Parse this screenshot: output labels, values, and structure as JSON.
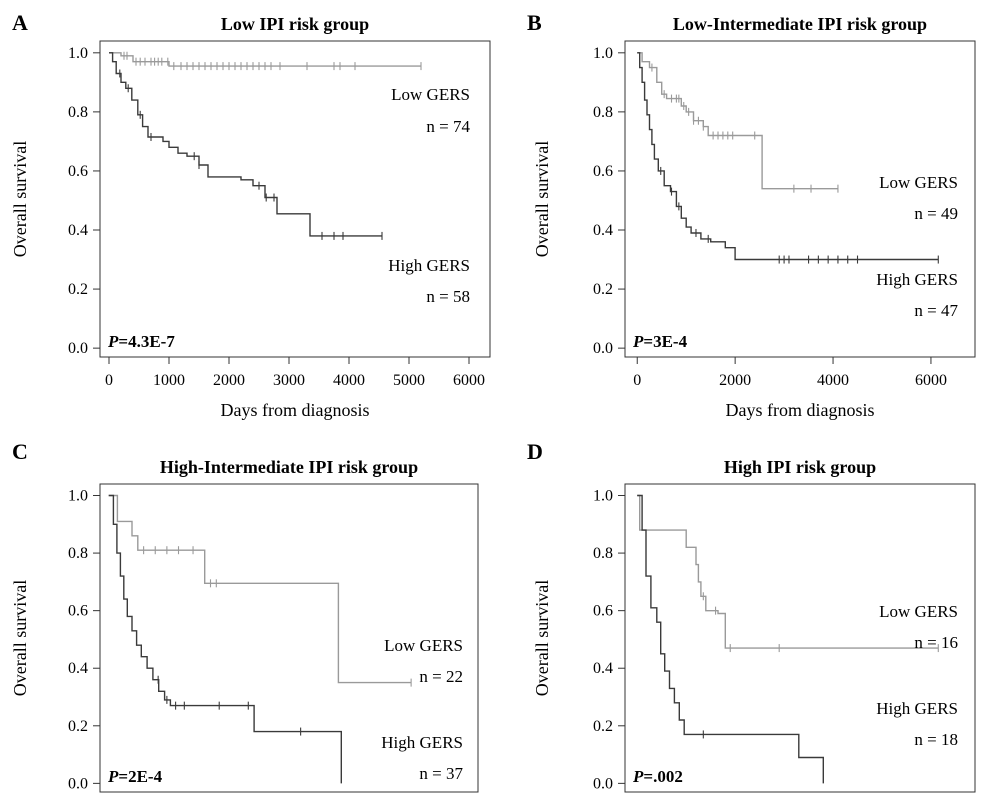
{
  "chart_data": [
    {
      "panel": "A",
      "type": "line",
      "title": "Low IPI risk group",
      "xlabel": "Days from diagnosis",
      "ylabel": "Overall survival",
      "p_value": {
        "prefix": "P",
        "value": "=4.3E-7"
      },
      "xlim": [
        -150,
        6350
      ],
      "ylim": [
        -0.03,
        1.04
      ],
      "xticks": [
        0,
        1000,
        2000,
        3000,
        4000,
        5000,
        6000
      ],
      "yticks": [
        0.0,
        0.2,
        0.4,
        0.6,
        0.8,
        1.0
      ],
      "ytick_labels": [
        "0.0",
        "0.2",
        "0.4",
        "0.6",
        "0.8",
        "1.0"
      ],
      "show_xaxis": true,
      "series": [
        {
          "name": "Low GERS",
          "n_label": "n = 74",
          "color": "#9a9a9a",
          "steps": [
            [
              0,
              1.0
            ],
            [
              200,
              0.99
            ],
            [
              400,
              0.97
            ],
            [
              1000,
              0.955
            ],
            [
              5200,
              0.955
            ]
          ],
          "censors": [
            250,
            300,
            450,
            520,
            600,
            700,
            760,
            820,
            880,
            980,
            1080,
            1200,
            1300,
            1400,
            1500,
            1600,
            1700,
            1800,
            1900,
            2000,
            2100,
            2200,
            2300,
            2400,
            2500,
            2600,
            2700,
            2850,
            3300,
            3750,
            3850,
            4100,
            5200
          ]
        },
        {
          "name": "High GERS",
          "n_label": "n = 58",
          "color": "#3a3a3a",
          "steps": [
            [
              0,
              1.0
            ],
            [
              60,
              0.97
            ],
            [
              120,
              0.93
            ],
            [
              200,
              0.9
            ],
            [
              280,
              0.88
            ],
            [
              380,
              0.84
            ],
            [
              480,
              0.79
            ],
            [
              560,
              0.75
            ],
            [
              650,
              0.715
            ],
            [
              900,
              0.7
            ],
            [
              1000,
              0.68
            ],
            [
              1150,
              0.66
            ],
            [
              1300,
              0.65
            ],
            [
              1500,
              0.62
            ],
            [
              1650,
              0.58
            ],
            [
              2200,
              0.57
            ],
            [
              2400,
              0.55
            ],
            [
              2600,
              0.51
            ],
            [
              2800,
              0.455
            ],
            [
              3300,
              0.455
            ],
            [
              3350,
              0.38
            ],
            [
              4550,
              0.38
            ]
          ],
          "censors": [
            180,
            320,
            520,
            700,
            1420,
            1500,
            2500,
            2620,
            2750,
            3550,
            3750,
            3900,
            4550
          ]
        }
      ]
    },
    {
      "panel": "B",
      "type": "line",
      "title": "Low-Intermediate IPI risk group",
      "xlabel": "Days from diagnosis",
      "ylabel": "Overall survival",
      "p_value": {
        "prefix": "P",
        "value": "=3E-4"
      },
      "xlim": [
        -250,
        6900
      ],
      "ylim": [
        -0.03,
        1.04
      ],
      "xticks": [
        0,
        2000,
        4000,
        6000
      ],
      "yticks": [
        0.0,
        0.2,
        0.4,
        0.6,
        0.8,
        1.0
      ],
      "ytick_labels": [
        "0.0",
        "0.2",
        "0.4",
        "0.6",
        "0.8",
        "1.0"
      ],
      "show_xaxis": true,
      "series": [
        {
          "name": "Low GERS",
          "n_label": "n = 49",
          "color": "#9a9a9a",
          "steps": [
            [
              0,
              1.0
            ],
            [
              100,
              0.97
            ],
            [
              250,
              0.95
            ],
            [
              400,
              0.9
            ],
            [
              500,
              0.86
            ],
            [
              600,
              0.845
            ],
            [
              900,
              0.82
            ],
            [
              1000,
              0.8
            ],
            [
              1150,
              0.77
            ],
            [
              1350,
              0.75
            ],
            [
              1450,
              0.72
            ],
            [
              2500,
              0.72
            ],
            [
              2550,
              0.54
            ],
            [
              4100,
              0.54
            ]
          ],
          "censors": [
            300,
            550,
            700,
            800,
            850,
            950,
            1050,
            1150,
            1250,
            1350,
            1550,
            1650,
            1750,
            1850,
            1950,
            2400,
            3200,
            3550,
            4100
          ]
        },
        {
          "name": "High GERS",
          "n_label": "n = 47",
          "color": "#3a3a3a",
          "steps": [
            [
              0,
              1.0
            ],
            [
              50,
              0.95
            ],
            [
              100,
              0.9
            ],
            [
              150,
              0.84
            ],
            [
              200,
              0.79
            ],
            [
              250,
              0.74
            ],
            [
              300,
              0.69
            ],
            [
              350,
              0.64
            ],
            [
              430,
              0.6
            ],
            [
              550,
              0.55
            ],
            [
              680,
              0.53
            ],
            [
              800,
              0.48
            ],
            [
              900,
              0.44
            ],
            [
              1000,
              0.41
            ],
            [
              1100,
              0.39
            ],
            [
              1300,
              0.37
            ],
            [
              1500,
              0.36
            ],
            [
              1800,
              0.34
            ],
            [
              2000,
              0.3
            ],
            [
              6150,
              0.3
            ]
          ],
          "censors": [
            480,
            700,
            850,
            1200,
            1450,
            2900,
            3000,
            3100,
            3500,
            3700,
            3900,
            4100,
            4300,
            4500,
            6150
          ]
        }
      ]
    },
    {
      "panel": "C",
      "type": "line",
      "title": "High-Intermediate IPI risk group",
      "ylabel": "Overall survival",
      "p_value": {
        "prefix": "P",
        "value": "=2E-4"
      },
      "xlim": [
        -150,
        6350
      ],
      "ylim": [
        -0.03,
        1.04
      ],
      "xticks": [],
      "yticks": [
        0.0,
        0.2,
        0.4,
        0.6,
        0.8,
        1.0
      ],
      "ytick_labels": [
        "0.0",
        "0.2",
        "0.4",
        "0.6",
        "0.8",
        "1.0"
      ],
      "show_xaxis": false,
      "series": [
        {
          "name": "Low GERS",
          "n_label": "n = 22",
          "color": "#9a9a9a",
          "steps": [
            [
              0,
              1.0
            ],
            [
              150,
              0.91
            ],
            [
              400,
              0.86
            ],
            [
              500,
              0.81
            ],
            [
              1600,
              0.81
            ],
            [
              1650,
              0.695
            ],
            [
              3900,
              0.695
            ],
            [
              3950,
              0.35
            ],
            [
              5200,
              0.35
            ]
          ],
          "censors": [
            600,
            800,
            1000,
            1200,
            1450,
            1750,
            1850,
            5200
          ]
        },
        {
          "name": "High GERS",
          "n_label": "n = 37",
          "color": "#3a3a3a",
          "steps": [
            [
              0,
              1.0
            ],
            [
              80,
              0.9
            ],
            [
              140,
              0.8
            ],
            [
              200,
              0.72
            ],
            [
              260,
              0.64
            ],
            [
              320,
              0.58
            ],
            [
              400,
              0.53
            ],
            [
              480,
              0.48
            ],
            [
              560,
              0.44
            ],
            [
              660,
              0.4
            ],
            [
              760,
              0.36
            ],
            [
              860,
              0.32
            ],
            [
              960,
              0.29
            ],
            [
              1060,
              0.27
            ],
            [
              2450,
              0.27
            ],
            [
              2500,
              0.18
            ],
            [
              4000,
              0.18
            ],
            [
              4000,
              0.0
            ]
          ],
          "censors": [
            850,
            1000,
            1150,
            1300,
            1900,
            2400,
            3300
          ]
        }
      ]
    },
    {
      "panel": "D",
      "type": "line",
      "title": "High IPI risk group",
      "ylabel": "Overall survival",
      "p_value": {
        "prefix": "P",
        "value": "=.002"
      },
      "xlim": [
        -250,
        6900
      ],
      "ylim": [
        -0.03,
        1.04
      ],
      "xticks": [],
      "yticks": [
        0.0,
        0.2,
        0.4,
        0.6,
        0.8,
        1.0
      ],
      "ytick_labels": [
        "0.0",
        "0.2",
        "0.4",
        "0.6",
        "0.8",
        "1.0"
      ],
      "show_xaxis": false,
      "series": [
        {
          "name": "Low GERS",
          "n_label": "n = 16",
          "color": "#9a9a9a",
          "steps": [
            [
              0,
              1.0
            ],
            [
              50,
              0.88
            ],
            [
              900,
              0.88
            ],
            [
              1000,
              0.82
            ],
            [
              1200,
              0.76
            ],
            [
              1250,
              0.7
            ],
            [
              1300,
              0.65
            ],
            [
              1400,
              0.6
            ],
            [
              1650,
              0.59
            ],
            [
              1800,
              0.47
            ],
            [
              6150,
              0.47
            ]
          ],
          "censors": [
            1350,
            1600,
            1900,
            2900,
            6150
          ]
        },
        {
          "name": "High GERS",
          "n_label": "n = 18",
          "color": "#3a3a3a",
          "steps": [
            [
              0,
              1.0
            ],
            [
              100,
              0.88
            ],
            [
              180,
              0.72
            ],
            [
              280,
              0.61
            ],
            [
              400,
              0.56
            ],
            [
              480,
              0.45
            ],
            [
              560,
              0.39
            ],
            [
              660,
              0.33
            ],
            [
              760,
              0.28
            ],
            [
              860,
              0.22
            ],
            [
              960,
              0.17
            ],
            [
              3250,
              0.17
            ],
            [
              3300,
              0.09
            ],
            [
              3800,
              0.09
            ],
            [
              3800,
              0.0
            ]
          ],
          "censors": [
            1350
          ]
        }
      ]
    }
  ]
}
